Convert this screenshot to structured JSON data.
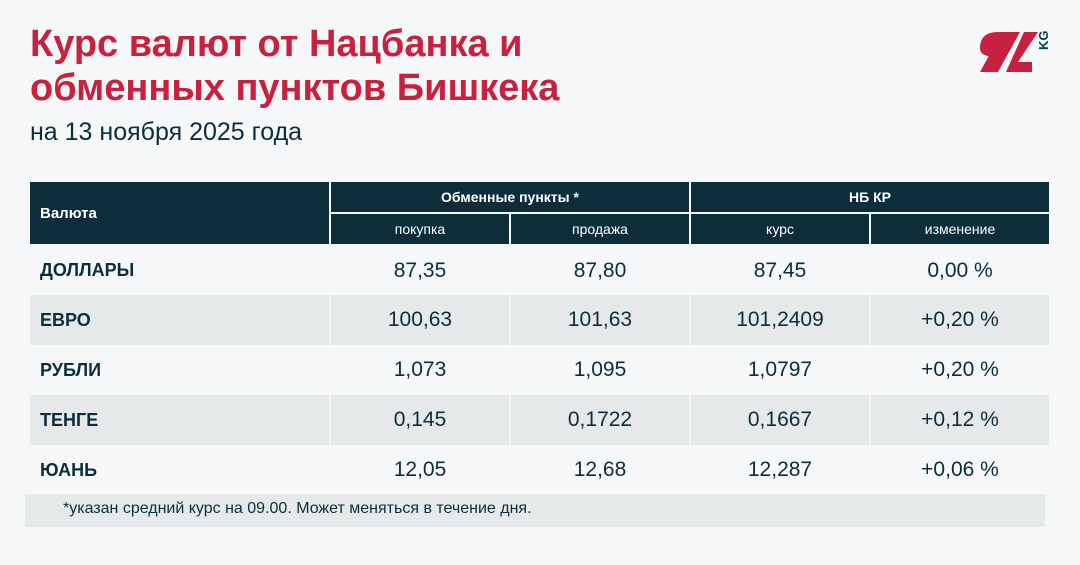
{
  "title_line1": "Курс валют от Нацбанка и",
  "title_line2": "обменных пунктов Бишкека",
  "subtitle": "на 13 ноября 2025 года",
  "logo": "24 KG",
  "logo_kg": "KG",
  "colors": {
    "accent": "#c8203f",
    "header": "#0d2d3b"
  },
  "table": {
    "currency_header": "Валюта",
    "exchange_header": "Обменные пункты *",
    "nbkr_header": "НБ КР",
    "sub": [
      "покупка",
      "продажа",
      "курс",
      "изменение"
    ],
    "rows": [
      [
        "ДОЛЛАРЫ",
        "87,35",
        "87,80",
        "87,45",
        "0,00 %"
      ],
      [
        "ЕВРО",
        "100,63",
        "101,63",
        "101,2409",
        "+0,20 %"
      ],
      [
        "РУБЛИ",
        "1,073",
        "1,095",
        "1,0797",
        "+0,20 %"
      ],
      [
        "ТЕНГЕ",
        "0,145",
        "0,1722",
        "0,1667",
        "+0,12 %"
      ],
      [
        "ЮАНЬ",
        "12,05",
        "12,68",
        "12,287",
        "+0,06 %"
      ]
    ]
  },
  "footnote": "*указан средний курс на 09.00. Может меняться в течение дня."
}
